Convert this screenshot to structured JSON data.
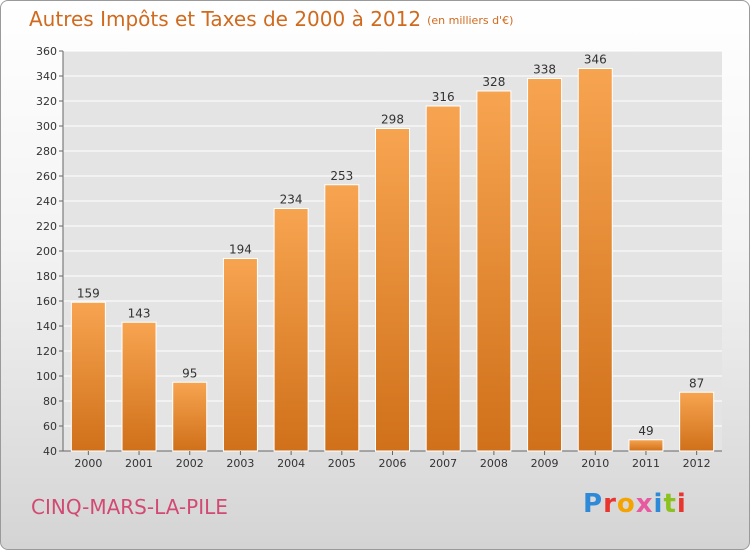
{
  "header": {
    "title": "Autres Impôts et Taxes de 2000 à 2012",
    "subtitle": "(en milliers d'€)"
  },
  "footer": {
    "commune": "CINQ-MARS-LA-PILE",
    "logo_letters": [
      "P",
      "r",
      "o",
      "x",
      "i",
      "t",
      "i"
    ],
    "logo_colors": [
      "#2e8ad8",
      "#e8362e",
      "#f5a300",
      "#e85aa0",
      "#2e8ad8",
      "#8cc21e",
      "#e8362e"
    ]
  },
  "colors": {
    "bar_light": "#f7a450",
    "bar_dark": "#d0701a",
    "bar_edge": "#ffffff",
    "grid": "#ffffff",
    "plot_bg": "#e4e4e4"
  },
  "chart_data": {
    "type": "bar",
    "title": "Autres Impôts et Taxes de 2000 à 2012",
    "subtitle": "(en milliers d'€)",
    "xlabel": "",
    "ylabel": "",
    "categories": [
      "2000",
      "2001",
      "2002",
      "2003",
      "2004",
      "2005",
      "2006",
      "2007",
      "2008",
      "2009",
      "2010",
      "2011",
      "2012"
    ],
    "values": [
      159,
      143,
      95,
      194,
      234,
      253,
      298,
      316,
      328,
      338,
      346,
      49,
      87
    ],
    "ylim": [
      40,
      360
    ],
    "yticks": [
      40,
      60,
      80,
      100,
      120,
      140,
      160,
      180,
      200,
      220,
      240,
      260,
      280,
      300,
      320,
      340,
      360
    ],
    "grid": true,
    "legend": "none"
  }
}
